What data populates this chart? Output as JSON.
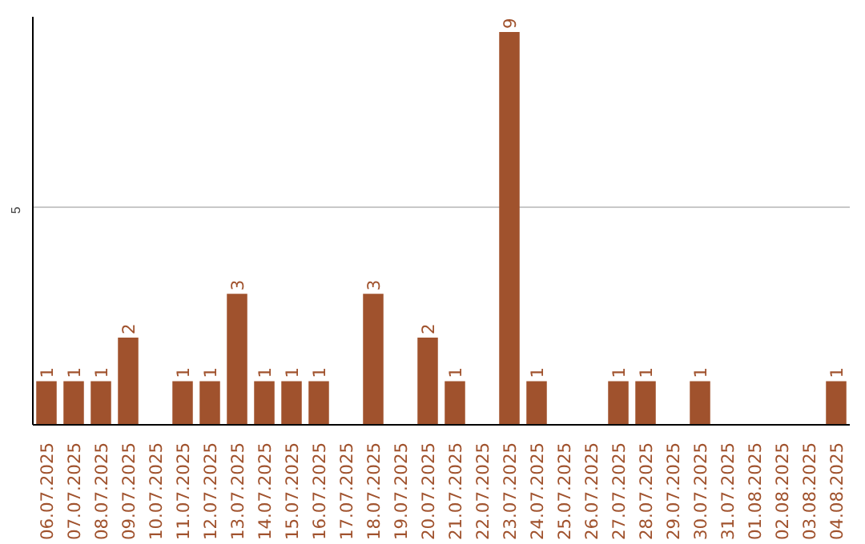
{
  "chart_data": {
    "type": "bar",
    "categories": [
      "06.07.2025",
      "07.07.2025",
      "08.07.2025",
      "09.07.2025",
      "10.07.2025",
      "11.07.2025",
      "12.07.2025",
      "13.07.2025",
      "14.07.2025",
      "15.07.2025",
      "16.07.2025",
      "17.07.2025",
      "18.07.2025",
      "19.07.2025",
      "20.07.2025",
      "21.07.2025",
      "22.07.2025",
      "23.07.2025",
      "24.07.2025",
      "25.07.2025",
      "26.07.2025",
      "27.07.2025",
      "28.07.2025",
      "29.07.2025",
      "30.07.2025",
      "31.07.2025",
      "01.08.2025",
      "02.08.2025",
      "03.08.2025",
      "04.08.2025"
    ],
    "values": [
      1,
      1,
      1,
      2,
      0,
      1,
      1,
      3,
      1,
      1,
      1,
      0,
      3,
      0,
      2,
      1,
      0,
      9,
      1,
      0,
      0,
      1,
      1,
      0,
      1,
      0,
      0,
      0,
      0,
      1
    ],
    "value_labels": [
      "1",
      "1",
      "1",
      "2",
      null,
      "1",
      "1",
      "3",
      "1",
      "1",
      "1",
      null,
      "3",
      null,
      "2",
      "1",
      null,
      "9",
      "1",
      null,
      null,
      "1",
      "1",
      null,
      "1",
      null,
      null,
      null,
      null,
      "1"
    ],
    "color": "#a0522d",
    "ylim": [
      0,
      9.35
    ],
    "yticks": [
      5
    ],
    "grid": "y"
  }
}
